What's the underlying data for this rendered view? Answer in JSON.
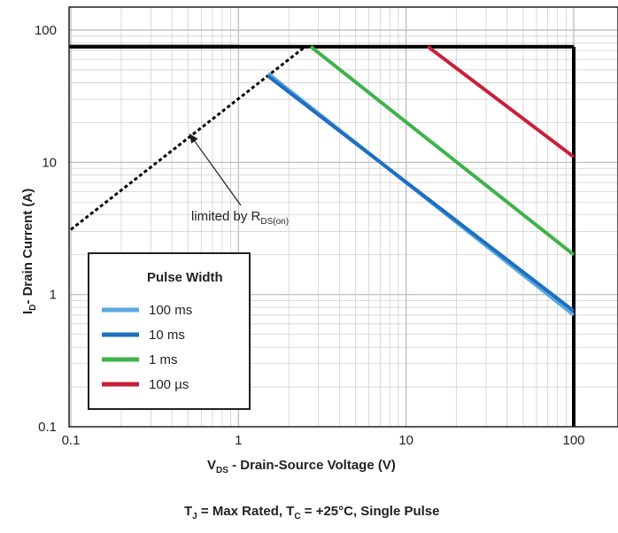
{
  "chart_data": {
    "type": "line",
    "x_scale": "log",
    "y_scale": "log",
    "xlim": [
      0.1,
      100
    ],
    "ylim": [
      0.1,
      100
    ],
    "grid": true,
    "x_ticks": [
      {
        "value": 0.1,
        "label": "0.1"
      },
      {
        "value": 1,
        "label": "1"
      },
      {
        "value": 10,
        "label": "10"
      },
      {
        "value": 100,
        "label": "100"
      }
    ],
    "y_ticks": [
      {
        "value": 0.1,
        "label": "0.1"
      },
      {
        "value": 1,
        "label": "1"
      },
      {
        "value": 10,
        "label": "10"
      },
      {
        "value": 100,
        "label": "100"
      }
    ],
    "xlabel": {
      "main": "V",
      "sub": "DS",
      "rest": "  - Drain-Source Voltage (V)"
    },
    "ylabel": {
      "main": "I",
      "sub": "D",
      "rest": "- Drain Current (A)"
    },
    "caption": {
      "t1": "T",
      "t1_sub": "J",
      "t1_rest": " = Max Rated, T",
      "t2_sub": "C",
      "t2_rest": " = +25°C, Single Pulse"
    },
    "legend": {
      "title": "Pulse Width",
      "position": "bottom-left"
    },
    "annotation": {
      "text": "limited by R",
      "sub": "DS(on)",
      "arrow_to": {
        "x": 0.5,
        "y": 17
      }
    },
    "boundary_lines": [
      {
        "name": "current-limit",
        "color": "#000000",
        "points": [
          [
            0.1,
            75
          ],
          [
            100,
            75
          ]
        ]
      },
      {
        "name": "voltage-limit",
        "color": "#000000",
        "points": [
          [
            100,
            0.1
          ],
          [
            100,
            75
          ]
        ]
      },
      {
        "name": "rds-on-limit",
        "color": "#000000",
        "dashed": true,
        "points": [
          [
            0.1,
            3.1
          ],
          [
            2.5,
            75
          ]
        ]
      }
    ],
    "series": [
      {
        "name": "100 ms",
        "color": "#5aa9e0",
        "values": [
          [
            1.5,
            47
          ],
          [
            100,
            0.7
          ]
        ]
      },
      {
        "name": "10 ms",
        "color": "#1f6fbf",
        "values": [
          [
            1.5,
            45
          ],
          [
            100,
            0.75
          ]
        ]
      },
      {
        "name": "1 ms",
        "color": "#3fb24a",
        "values": [
          [
            2.7,
            75
          ],
          [
            100,
            2.0
          ]
        ]
      },
      {
        "name": "100 µs",
        "color": "#c8203a",
        "values": [
          [
            13.5,
            75
          ],
          [
            100,
            11
          ]
        ]
      }
    ]
  }
}
